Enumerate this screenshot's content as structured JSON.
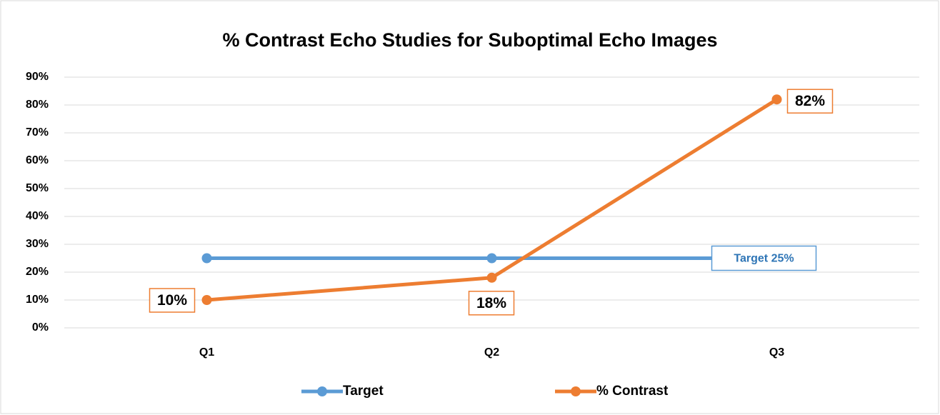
{
  "chart_data": {
    "type": "line",
    "title": "% Contrast Echo Studies for Suboptimal Echo Images",
    "categories": [
      "Q1",
      "Q2",
      "Q3"
    ],
    "series": [
      {
        "name": "Target",
        "color": "#5b9bd5",
        "values": [
          25,
          25,
          25
        ],
        "value_labels": [
          null,
          null,
          "Target 25%"
        ]
      },
      {
        "name": "% Contrast",
        "color": "#ed7d31",
        "values": [
          10,
          18,
          82
        ],
        "value_labels": [
          "10%",
          "18%",
          "82%"
        ]
      }
    ],
    "ylim": [
      0,
      90
    ],
    "yticks": [
      {
        "value": 0,
        "label": "0%"
      },
      {
        "value": 10,
        "label": "10%"
      },
      {
        "value": 20,
        "label": "20%"
      },
      {
        "value": 30,
        "label": "30%"
      },
      {
        "value": 40,
        "label": "40%"
      },
      {
        "value": 50,
        "label": "50%"
      },
      {
        "value": 60,
        "label": "60%"
      },
      {
        "value": 70,
        "label": "70%"
      },
      {
        "value": 80,
        "label": "80%"
      },
      {
        "value": 90,
        "label": "90%"
      }
    ],
    "grid": true,
    "legend": "bottom"
  }
}
